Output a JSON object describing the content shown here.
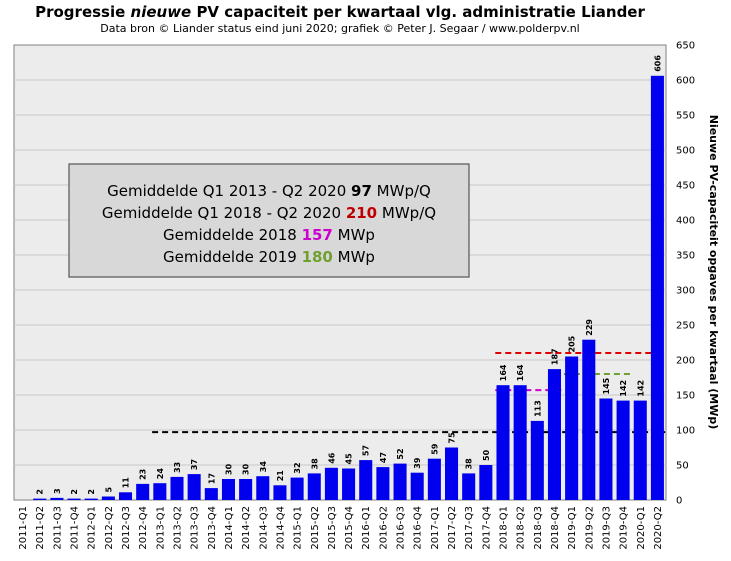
{
  "title": {
    "prefix": "Progressie ",
    "italic": "nieuwe",
    "suffix": " PV capaciteit  per kwartaal vlg. administratie  Liander"
  },
  "subtitle": "Data bron © Liander status eind juni 2020; grafiek © Peter J. Segaar / www.polderpv.nl",
  "annotation": {
    "lines": [
      {
        "pre": "Gemiddelde Q1 2013  - Q2 2020 ",
        "value": "97",
        "post": "  MWp/Q",
        "color": "#000000"
      },
      {
        "pre": "Gemiddelde Q1 2018  - Q2 2020 ",
        "value": "210",
        "post": "  MWp/Q",
        "color": "#c00000"
      },
      {
        "pre": "Gemiddelde 2018 ",
        "value": "157",
        "post": "  MWp",
        "color": "#cc00cc"
      },
      {
        "pre": "Gemiddelde 2019 ",
        "value": "180",
        "post": "  MWp",
        "color": "#70a030"
      }
    ]
  },
  "chart_data": {
    "type": "bar",
    "title": "Progressie nieuwe PV capaciteit  per kwartaal vlg. administratie  Liander",
    "xlabel": "",
    "ylabel": "Nieuwe PV-capaciteit opgaves per kwartaal (MWp)",
    "ylim": [
      0,
      650
    ],
    "yticks": [
      0,
      50,
      100,
      150,
      200,
      250,
      300,
      350,
      400,
      450,
      500,
      550,
      600,
      650
    ],
    "bar_color": "#0000ee",
    "categories": [
      "2011-Q1",
      "2011-Q2",
      "2011-Q3",
      "2011-Q4",
      "2012-Q1",
      "2012-Q2",
      "2012-Q3",
      "2012-Q4",
      "2013-Q1",
      "2013-Q2",
      "2013-Q3",
      "2013-Q4",
      "2014-Q1",
      "2014-Q2",
      "2014-Q3",
      "2014-Q4",
      "2015-Q1",
      "2015-Q2",
      "2015-Q3",
      "2015-Q4",
      "2016-Q1",
      "2016-Q2",
      "2016-Q3",
      "2016-Q4",
      "2017-Q1",
      "2017-Q2",
      "2017-Q3",
      "2017-Q4",
      "2018-Q1",
      "2018-Q2",
      "2018-Q3",
      "2018-Q4",
      "2019-Q1",
      "2019-Q2",
      "2019-Q3",
      "2019-Q4",
      "2020-Q1",
      "2020-Q2"
    ],
    "values": [
      null,
      2,
      3,
      2,
      2,
      5,
      11,
      23,
      24,
      33,
      37,
      17,
      30,
      30,
      34,
      21,
      32,
      38,
      46,
      45,
      57,
      47,
      52,
      39,
      59,
      75,
      38,
      50,
      164,
      164,
      113,
      187,
      205,
      229,
      145,
      142,
      142,
      606
    ],
    "labels": [
      "",
      "2",
      "3",
      "2",
      "2",
      "5",
      "11",
      "23",
      "24",
      "33",
      "37",
      "17",
      "30",
      "30",
      "34",
      "21",
      "32",
      "38",
      "46",
      "45",
      "57",
      "47",
      "52",
      "39",
      "59",
      "75",
      "38",
      "50",
      "164",
      "164",
      "113",
      "187",
      "205",
      "229",
      "145",
      "142",
      "142",
      "606"
    ],
    "reference_lines": [
      {
        "name": "Gemiddelde Q1 2013 - Q2 2020",
        "value": 97,
        "from": "2013-Q1",
        "to": "2020-Q2",
        "color": "#000000"
      },
      {
        "name": "Gemiddelde Q1 2018 - Q2 2020",
        "value": 210,
        "from": "2018-Q1",
        "to": "2020-Q2",
        "color": "#e00000"
      },
      {
        "name": "Gemiddelde 2018",
        "value": 157,
        "from": "2018-Q1",
        "to": "2018-Q4",
        "color": "#cc00cc"
      },
      {
        "name": "Gemiddelde 2019",
        "value": 180,
        "from": "2019-Q1",
        "to": "2019-Q4",
        "color": "#70a030"
      }
    ]
  }
}
